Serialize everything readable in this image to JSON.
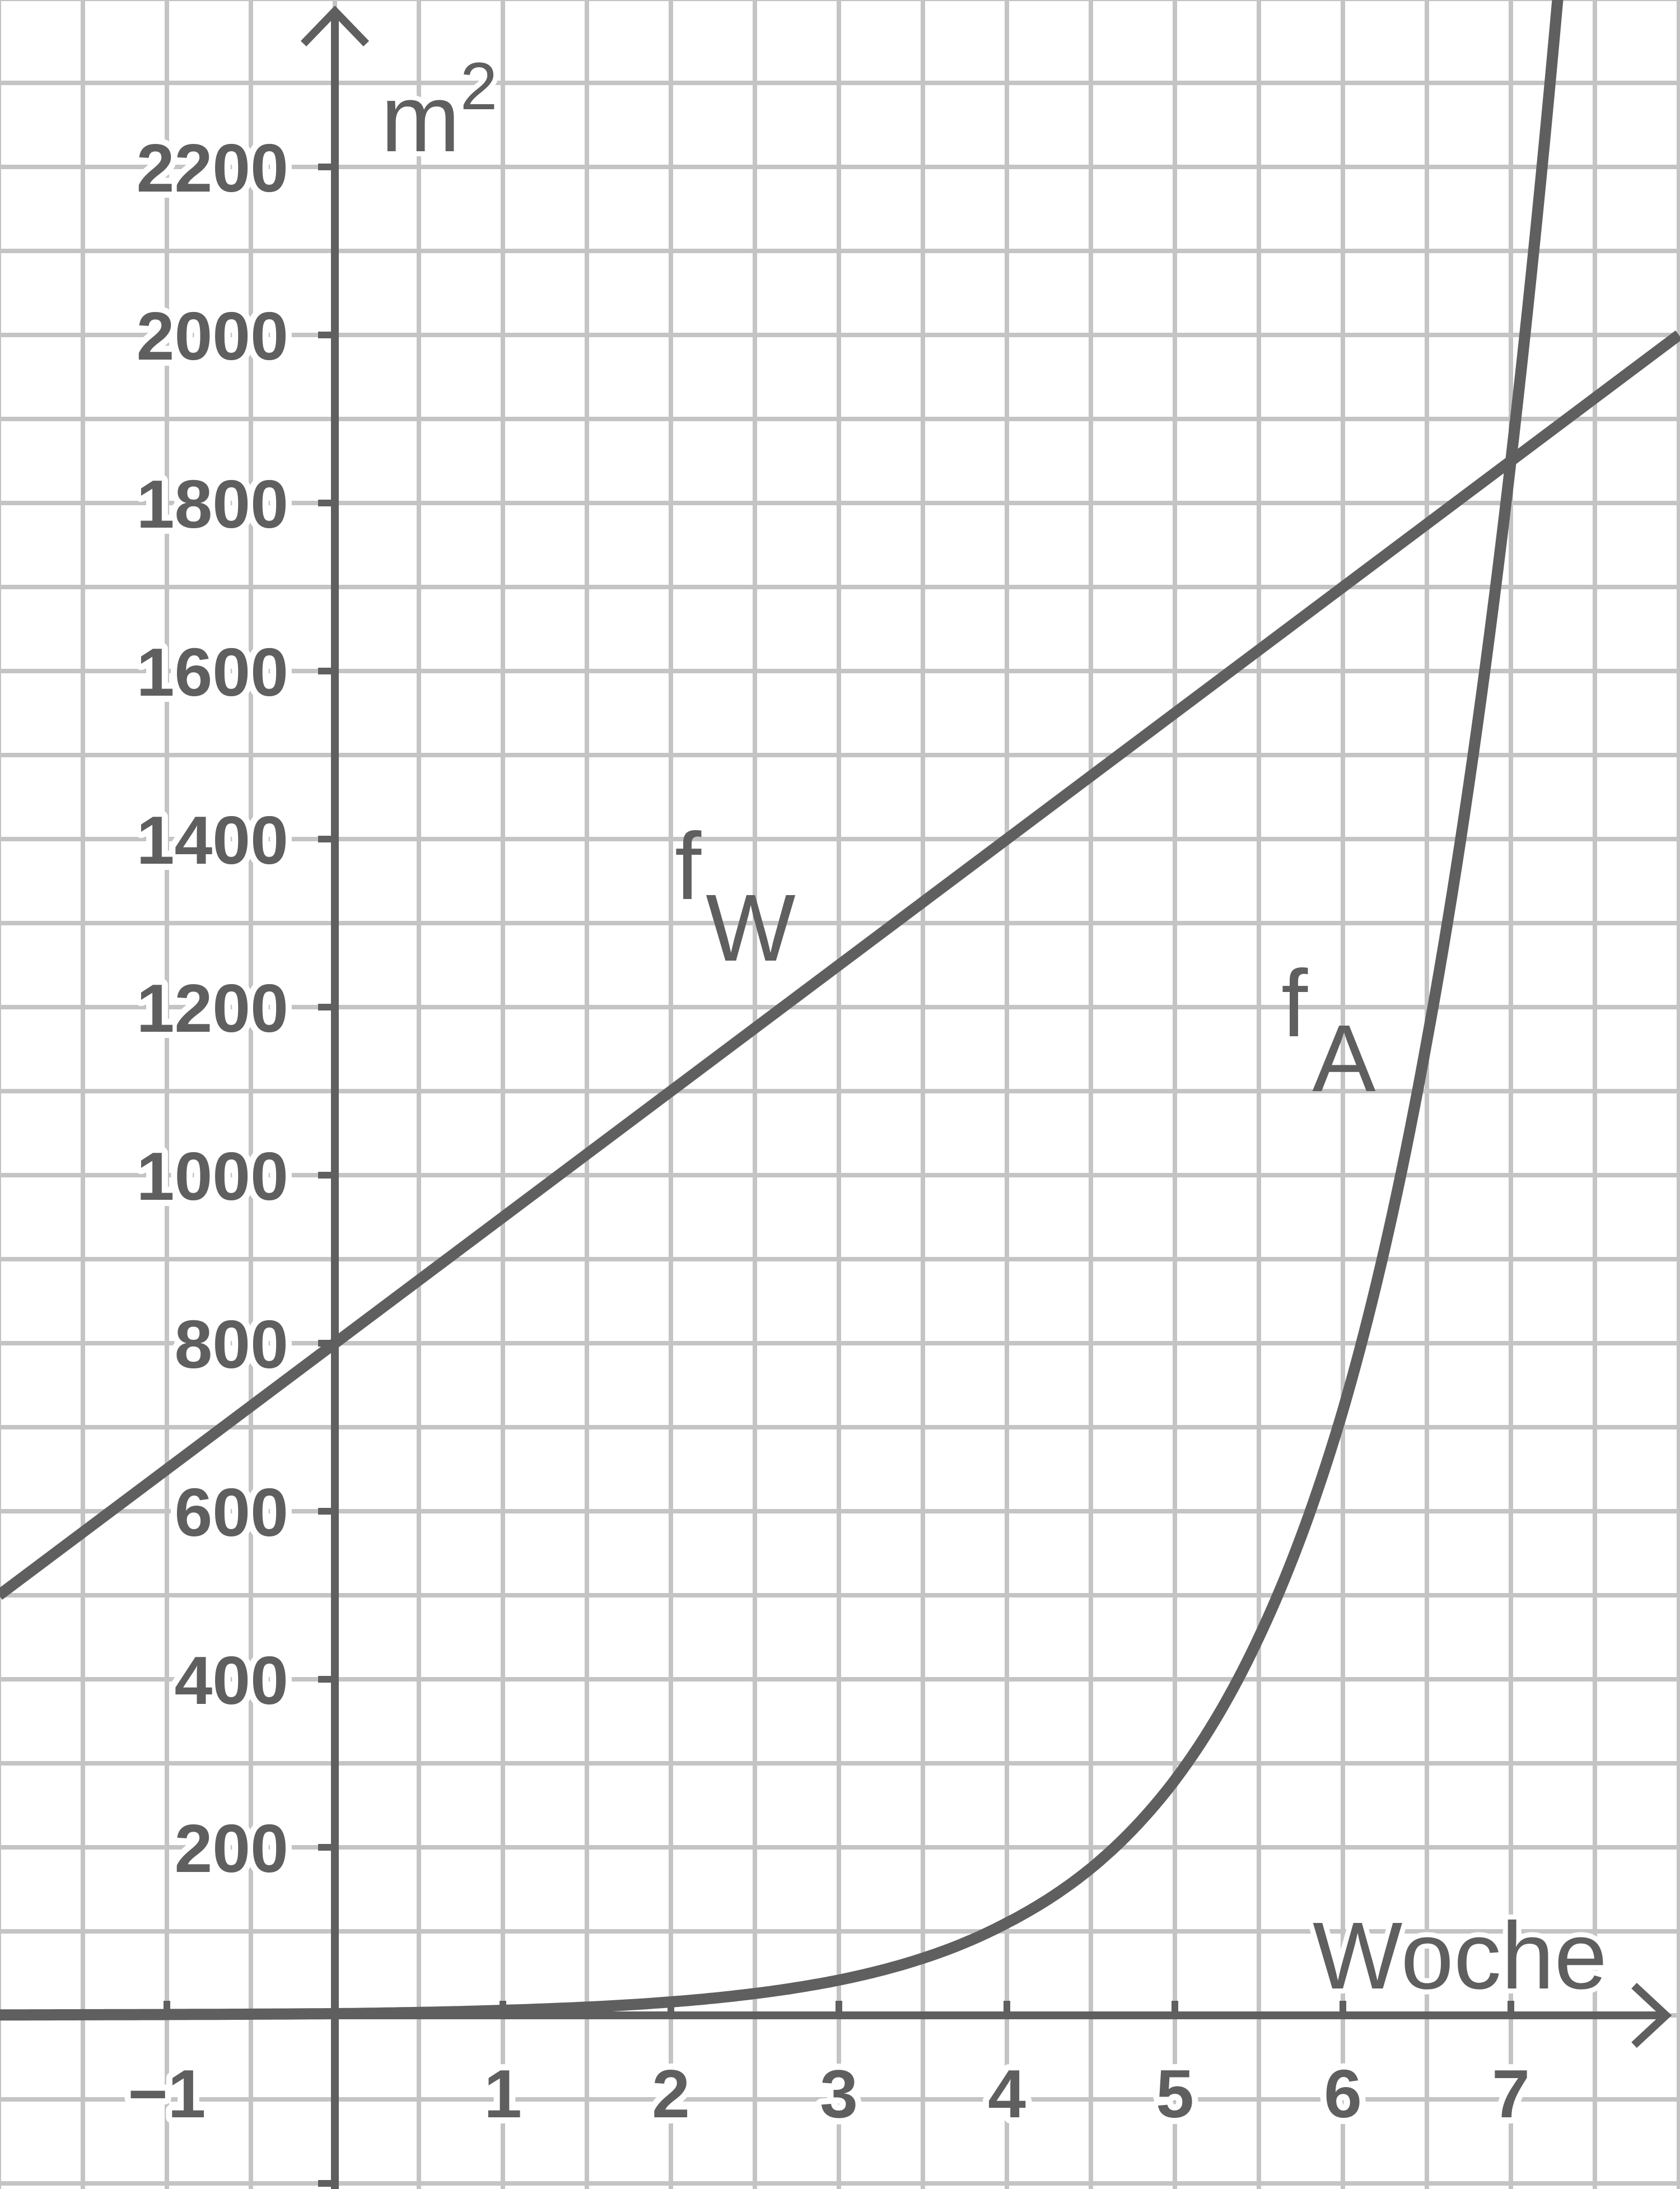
{
  "chart_data": {
    "type": "line",
    "xlabel": "Woche",
    "ylabel": "m",
    "ylabel_exponent": "2",
    "xlim": [
      -2,
      8
    ],
    "ylim": [
      -200,
      2400
    ],
    "x_ticks": [
      {
        "value": -1,
        "label": "−1"
      },
      {
        "value": 1,
        "label": "1"
      },
      {
        "value": 2,
        "label": "2"
      },
      {
        "value": 3,
        "label": "3"
      },
      {
        "value": 4,
        "label": "4"
      },
      {
        "value": 5,
        "label": "5"
      },
      {
        "value": 6,
        "label": "6"
      },
      {
        "value": 7,
        "label": "7"
      }
    ],
    "y_ticks": [
      {
        "value": 200,
        "label": "200"
      },
      {
        "value": 400,
        "label": "400"
      },
      {
        "value": 600,
        "label": "600"
      },
      {
        "value": 800,
        "label": "800"
      },
      {
        "value": 1000,
        "label": "1000"
      },
      {
        "value": 1200,
        "label": "1200"
      },
      {
        "value": 1400,
        "label": "1400"
      },
      {
        "value": 1600,
        "label": "1600"
      },
      {
        "value": 1800,
        "label": "1800"
      },
      {
        "value": 2000,
        "label": "2000"
      },
      {
        "value": 2200,
        "label": "2200"
      }
    ],
    "grid": true,
    "grid_step": {
      "x": 0.5,
      "y": 100
    },
    "series": [
      {
        "name": "f",
        "subscript": "W",
        "x": [
          -2,
          0,
          2,
          4,
          6,
          8
        ],
        "y": [
          500,
          800,
          1100,
          1400,
          1700,
          2000
        ]
      },
      {
        "name": "f",
        "subscript": "A",
        "x": [
          -2,
          -1,
          0,
          1,
          2,
          2.5,
          3,
          3.5,
          4,
          4.5,
          5,
          5.5,
          6,
          6.5,
          7
        ],
        "y": [
          0,
          1,
          2,
          6,
          16,
          26,
          42,
          68,
          110,
          175,
          280,
          450,
          720,
          1160,
          1850
        ]
      }
    ],
    "colors": {
      "lines": "#5f5f5f",
      "grid": "#c4c4c4",
      "background": "#ffffff"
    }
  }
}
